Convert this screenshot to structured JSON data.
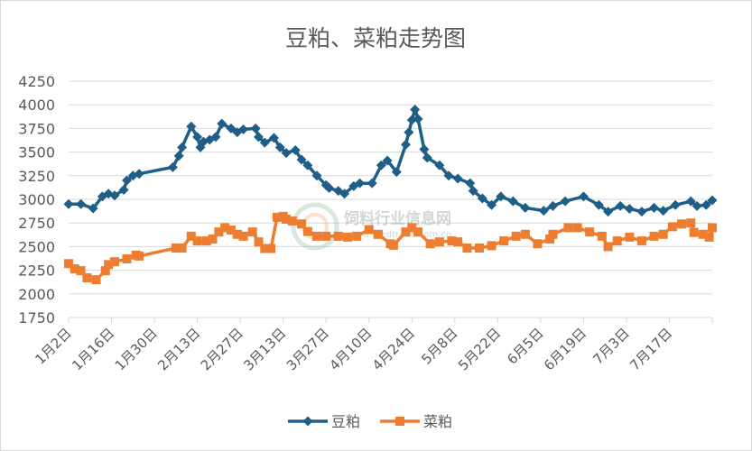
{
  "chart_data": {
    "type": "line",
    "title": "豆粕、菜粕走势图",
    "xlabel": "",
    "ylabel": "",
    "ylim": [
      1750,
      4250
    ],
    "yticks": [
      1750,
      2000,
      2250,
      2500,
      2750,
      3000,
      3250,
      3500,
      3750,
      4000,
      4250
    ],
    "xlim": [
      "01-02",
      "07-31"
    ],
    "xtick_labels": [
      "1月2日",
      "1月16日",
      "1月30日",
      "2月13日",
      "2月27日",
      "3月13日",
      "3月27日",
      "4月10日",
      "4月24日",
      "5月8日",
      "5月22日",
      "6月5日",
      "6月19日",
      "7月3日",
      "7月17日"
    ],
    "grid": true,
    "legend_position": "bottom",
    "series": [
      {
        "name": "豆粕",
        "color": "#1f5f87",
        "marker": "diamond",
        "points": [
          [
            "01-02",
            2950
          ],
          [
            "01-06",
            2950
          ],
          [
            "01-10",
            2905
          ],
          [
            "01-13",
            3030
          ],
          [
            "01-15",
            3060
          ],
          [
            "01-17",
            3040
          ],
          [
            "01-20",
            3100
          ],
          [
            "01-21",
            3200
          ],
          [
            "01-23",
            3250
          ],
          [
            "01-25",
            3270
          ],
          [
            "02-05",
            3340
          ],
          [
            "02-07",
            3460
          ],
          [
            "02-08",
            3550
          ],
          [
            "02-11",
            3770
          ],
          [
            "02-13",
            3660
          ],
          [
            "02-14",
            3550
          ],
          [
            "02-15",
            3610
          ],
          [
            "02-17",
            3630
          ],
          [
            "02-19",
            3660
          ],
          [
            "02-21",
            3800
          ],
          [
            "02-24",
            3750
          ],
          [
            "02-26",
            3710
          ],
          [
            "02-28",
            3740
          ],
          [
            "03-04",
            3750
          ],
          [
            "03-05",
            3660
          ],
          [
            "03-07",
            3600
          ],
          [
            "03-10",
            3650
          ],
          [
            "03-12",
            3550
          ],
          [
            "03-14",
            3490
          ],
          [
            "03-17",
            3520
          ],
          [
            "03-19",
            3420
          ],
          [
            "03-21",
            3360
          ],
          [
            "03-24",
            3250
          ],
          [
            "03-27",
            3150
          ],
          [
            "03-28",
            3120
          ],
          [
            "03-31",
            3090
          ],
          [
            "04-02",
            3060
          ],
          [
            "04-05",
            3140
          ],
          [
            "04-07",
            3170
          ],
          [
            "04-11",
            3170
          ],
          [
            "04-14",
            3360
          ],
          [
            "04-16",
            3410
          ],
          [
            "04-19",
            3290
          ],
          [
            "04-22",
            3580
          ],
          [
            "04-23",
            3710
          ],
          [
            "04-24",
            3840
          ],
          [
            "04-25",
            3950
          ],
          [
            "04-26",
            3850
          ],
          [
            "04-28",
            3530
          ],
          [
            "04-29",
            3440
          ],
          [
            "05-03",
            3360
          ],
          [
            "05-06",
            3250
          ],
          [
            "05-09",
            3220
          ],
          [
            "05-13",
            3170
          ],
          [
            "05-14",
            3090
          ],
          [
            "05-17",
            3010
          ],
          [
            "05-20",
            2940
          ],
          [
            "05-23",
            3030
          ],
          [
            "05-27",
            2980
          ],
          [
            "05-31",
            2910
          ],
          [
            "06-06",
            2880
          ],
          [
            "06-09",
            2930
          ],
          [
            "06-13",
            2980
          ],
          [
            "06-19",
            3030
          ],
          [
            "06-24",
            2940
          ],
          [
            "06-27",
            2870
          ],
          [
            "07-01",
            2930
          ],
          [
            "07-04",
            2900
          ],
          [
            "07-08",
            2870
          ],
          [
            "07-12",
            2910
          ],
          [
            "07-15",
            2880
          ],
          [
            "07-19",
            2940
          ],
          [
            "07-24",
            2980
          ],
          [
            "07-26",
            2930
          ],
          [
            "07-29",
            2940
          ],
          [
            "07-31",
            2990
          ]
        ]
      },
      {
        "name": "菜粕",
        "color": "#ed7d31",
        "marker": "square",
        "points": [
          [
            "01-02",
            2320
          ],
          [
            "01-04",
            2265
          ],
          [
            "01-06",
            2245
          ],
          [
            "01-08",
            2170
          ],
          [
            "01-11",
            2150
          ],
          [
            "01-14",
            2245
          ],
          [
            "01-15",
            2310
          ],
          [
            "01-17",
            2340
          ],
          [
            "01-21",
            2370
          ],
          [
            "01-24",
            2410
          ],
          [
            "01-25",
            2400
          ],
          [
            "02-06",
            2485
          ],
          [
            "02-08",
            2485
          ],
          [
            "02-11",
            2610
          ],
          [
            "02-13",
            2560
          ],
          [
            "02-16",
            2560
          ],
          [
            "02-18",
            2580
          ],
          [
            "02-20",
            2655
          ],
          [
            "02-22",
            2700
          ],
          [
            "02-24",
            2675
          ],
          [
            "02-26",
            2630
          ],
          [
            "02-28",
            2610
          ],
          [
            "03-03",
            2655
          ],
          [
            "03-05",
            2550
          ],
          [
            "03-07",
            2480
          ],
          [
            "03-09",
            2480
          ],
          [
            "03-11",
            2810
          ],
          [
            "03-13",
            2820
          ],
          [
            "03-14",
            2790
          ],
          [
            "03-16",
            2770
          ],
          [
            "03-19",
            2740
          ],
          [
            "03-21",
            2660
          ],
          [
            "03-24",
            2610
          ],
          [
            "03-27",
            2610
          ],
          [
            "03-31",
            2610
          ],
          [
            "04-03",
            2600
          ],
          [
            "04-06",
            2610
          ],
          [
            "04-10",
            2680
          ],
          [
            "04-13",
            2630
          ],
          [
            "04-17",
            2530
          ],
          [
            "04-18",
            2515
          ],
          [
            "04-22",
            2655
          ],
          [
            "04-24",
            2700
          ],
          [
            "04-26",
            2655
          ],
          [
            "04-30",
            2530
          ],
          [
            "05-03",
            2550
          ],
          [
            "05-07",
            2560
          ],
          [
            "05-09",
            2550
          ],
          [
            "05-12",
            2485
          ],
          [
            "05-16",
            2485
          ],
          [
            "05-20",
            2510
          ],
          [
            "05-24",
            2560
          ],
          [
            "05-28",
            2610
          ],
          [
            "05-31",
            2630
          ],
          [
            "06-04",
            2530
          ],
          [
            "06-08",
            2580
          ],
          [
            "06-09",
            2630
          ],
          [
            "06-14",
            2700
          ],
          [
            "06-17",
            2700
          ],
          [
            "06-21",
            2655
          ],
          [
            "06-25",
            2610
          ],
          [
            "06-27",
            2500
          ],
          [
            "06-30",
            2560
          ],
          [
            "07-04",
            2600
          ],
          [
            "07-08",
            2560
          ],
          [
            "07-12",
            2610
          ],
          [
            "07-15",
            2630
          ],
          [
            "07-18",
            2710
          ],
          [
            "07-21",
            2740
          ],
          [
            "07-24",
            2750
          ],
          [
            "07-25",
            2650
          ],
          [
            "07-28",
            2630
          ],
          [
            "07-30",
            2600
          ],
          [
            "07-31",
            2700
          ]
        ]
      }
    ]
  },
  "watermark": {
    "name": "饲料行业信息网",
    "url": "www.feedtrade.com.cn"
  }
}
